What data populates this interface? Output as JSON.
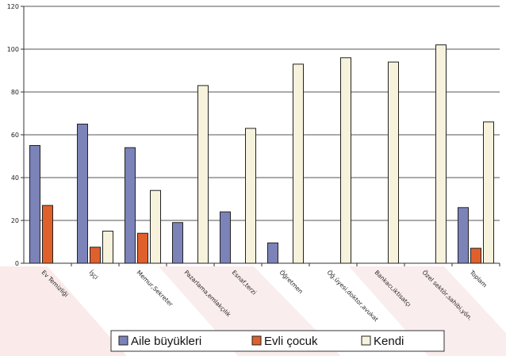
{
  "chart_data": {
    "type": "bar",
    "categories": [
      "Ev Temizliği",
      "İşçi",
      "Memur,Sekreter",
      "Pazarlama,emlakçılık",
      "Esnaf,terzi",
      "Öğretmen",
      "Öğ.üyesi,doktor,avukat",
      "Bankacı,iktisatçı",
      "Özel sektör,sahibi,yön.",
      "Toplam"
    ],
    "series": [
      {
        "name": "Aile büyükleri",
        "color": "#7c83b8",
        "values": [
          55,
          65,
          54,
          19,
          24,
          9.5,
          0,
          0,
          0,
          26
        ]
      },
      {
        "name": "Evli çocuk",
        "color": "#e0602c",
        "values": [
          27,
          7.5,
          14,
          0,
          0,
          0,
          0,
          0,
          0,
          7
        ]
      },
      {
        "name": "Kendi",
        "color": "#f6f2dc",
        "values": [
          0,
          15,
          34,
          83,
          63,
          93,
          96,
          94,
          102,
          66
        ]
      }
    ],
    "yticks": [
      0,
      20,
      40,
      60,
      80,
      100,
      120
    ],
    "ylim": [
      0,
      120
    ],
    "grid": true,
    "legend_position": "bottom"
  }
}
